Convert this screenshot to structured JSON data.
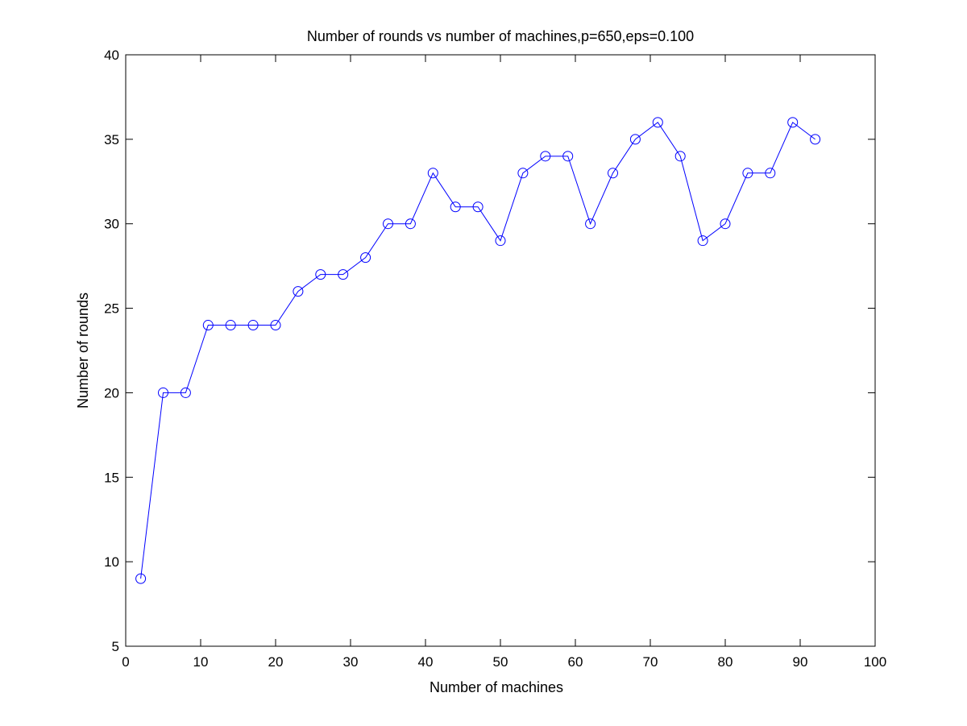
{
  "chart_data": {
    "type": "line",
    "title": "Number of rounds vs number of machines,p=650,eps=0.100",
    "xlabel": "Number of machines",
    "ylabel": "Number of rounds",
    "xlim": [
      0,
      100
    ],
    "ylim": [
      5,
      40
    ],
    "xticks": [
      0,
      10,
      20,
      30,
      40,
      50,
      60,
      70,
      80,
      90,
      100
    ],
    "yticks": [
      5,
      10,
      15,
      20,
      25,
      30,
      35,
      40
    ],
    "grid": false,
    "legend": "none",
    "series": [
      {
        "color": "#0000ff",
        "marker": "circle",
        "x": [
          2,
          5,
          8,
          11,
          14,
          17,
          20,
          23,
          26,
          29,
          32,
          35,
          38,
          41,
          44,
          47,
          50,
          53,
          56,
          59,
          62,
          65,
          68,
          71,
          74,
          77,
          80,
          83,
          86,
          89,
          92
        ],
        "y": [
          9,
          20,
          20,
          24,
          24,
          24,
          24,
          26,
          27,
          27,
          28,
          30,
          30,
          33,
          31,
          31,
          29,
          33,
          34,
          34,
          30,
          33,
          35,
          36,
          34,
          29,
          30,
          33,
          33,
          36,
          35
        ]
      }
    ]
  }
}
